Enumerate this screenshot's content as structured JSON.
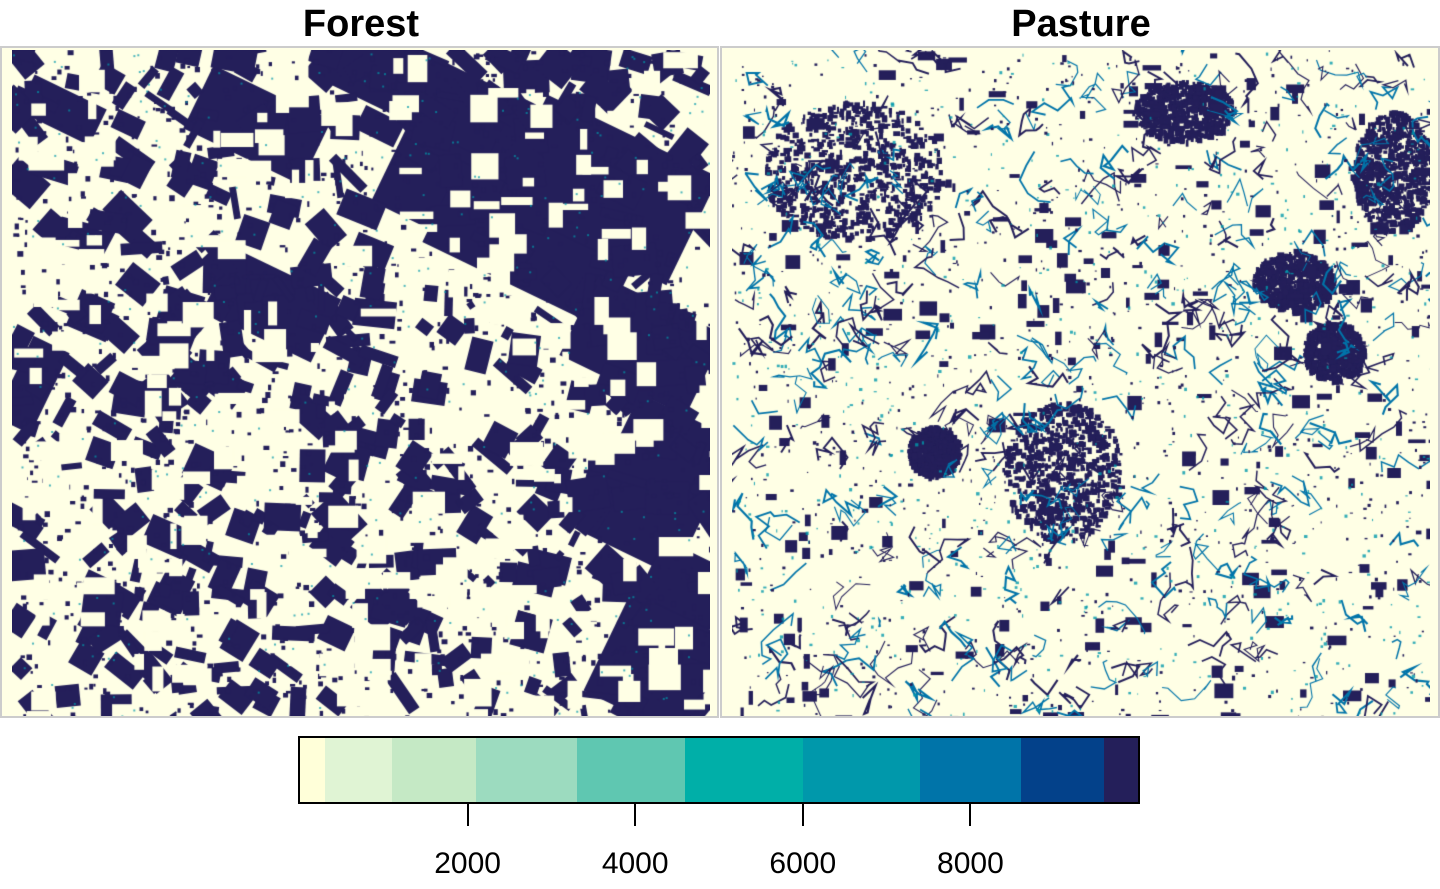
{
  "titles": {
    "left": "Forest",
    "right": "Pasture"
  },
  "legend": {
    "colors": [
      "#ffffd9",
      "#e0f4d4",
      "#c5e9c5",
      "#9cdbbf",
      "#5fc7b1",
      "#00afa8",
      "#0098ab",
      "#0074a9",
      "#03418a",
      "#241f5a"
    ],
    "breaks": [
      0,
      300,
      1100,
      2100,
      3300,
      4600,
      6000,
      7400,
      8600,
      9600,
      10000
    ],
    "ticks": [
      {
        "value": 2000,
        "label": "2000"
      },
      {
        "value": 4000,
        "label": "4000"
      },
      {
        "value": 6000,
        "label": "6000"
      },
      {
        "value": 8000,
        "label": "8000"
      }
    ]
  },
  "colors": {
    "background": "#ffffe5",
    "dark": "#241f5a",
    "mid": "#0074a9",
    "frame": "#cccccc"
  }
}
